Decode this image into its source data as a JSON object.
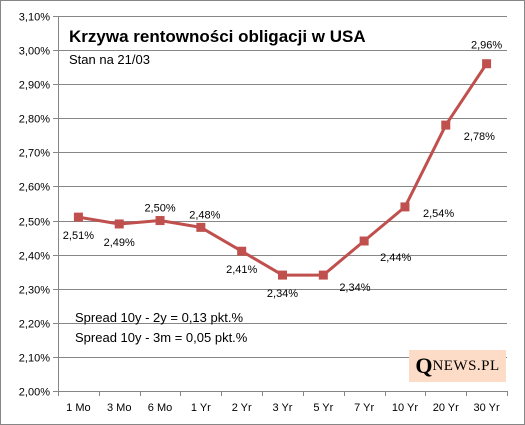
{
  "chart_data": {
    "type": "line",
    "title": "Krzywa rentowności obligacji w USA",
    "subtitle": "Stan na 21/03",
    "categories": [
      "1 Mo",
      "3 Mo",
      "6 Mo",
      "1 Yr",
      "2 Yr",
      "3 Yr",
      "5 Yr",
      "7 Yr",
      "10 Yr",
      "20 Yr",
      "30 Yr"
    ],
    "series": [
      {
        "values": [
          2.51,
          2.49,
          2.5,
          2.48,
          2.41,
          2.34,
          2.34,
          2.44,
          2.54,
          2.78,
          2.96
        ],
        "labels": [
          "2,51%",
          "2,49%",
          "2,50%",
          "2,48%",
          "2,41%",
          "2,34%",
          "2,34%",
          "2,44%",
          "2,54%",
          "2,78%",
          "2,96%"
        ],
        "color": "#c0504d"
      }
    ],
    "ylim": [
      2.0,
      3.1
    ],
    "yticks": [
      2.0,
      2.1,
      2.2,
      2.3,
      2.4,
      2.5,
      2.6,
      2.7,
      2.8,
      2.9,
      3.0,
      3.1
    ],
    "ytick_labels": [
      "2,00%",
      "2,10%",
      "2,20%",
      "2,30%",
      "2,40%",
      "2,50%",
      "2,60%",
      "2,70%",
      "2,80%",
      "2,90%",
      "3,00%",
      "3,10%"
    ],
    "grid": true,
    "legend": "none",
    "xlabel": "",
    "ylabel": ""
  },
  "annotations": {
    "spread_10y_2y": "Spread 10y - 2y = 0,13 pkt.%",
    "spread_10y_3m": "Spread 10y - 3m = 0,05 pkt.%"
  },
  "logo": {
    "initial": "Q",
    "rest": "NEWS.PL"
  },
  "colors": {
    "grid": "#878787",
    "axis": "#868686",
    "series": "#c0504d",
    "logo_bg": "#fcdcc6"
  }
}
